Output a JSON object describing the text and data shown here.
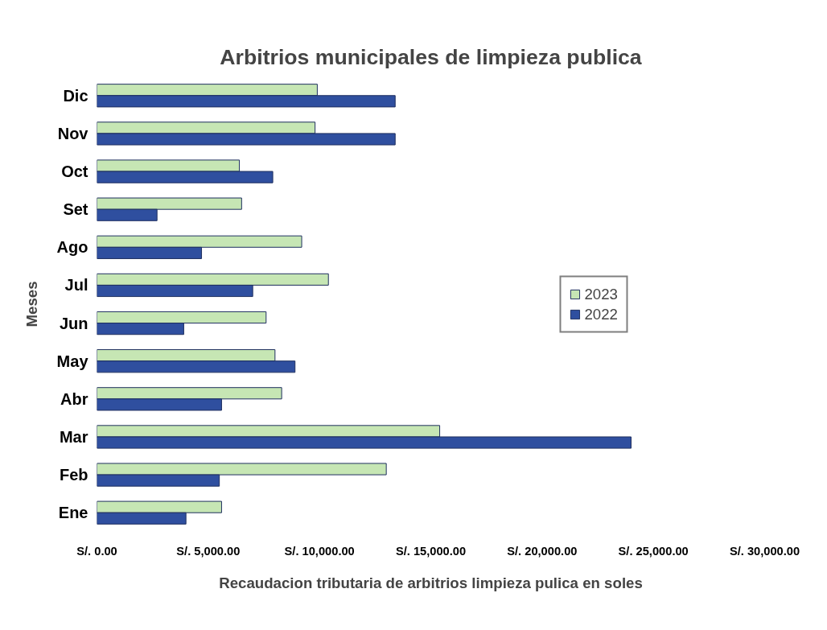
{
  "chart_data": {
    "type": "bar",
    "orientation": "horizontal",
    "title": "Arbitrios municipales de limpieza publica",
    "xlabel": "Recaudacion tributaria de arbitrios limpieza pulica en soles",
    "ylabel": "Meses",
    "categories": [
      "Dic",
      "Nov",
      "Oct",
      "Set",
      "Ago",
      "Jul",
      "Jun",
      "May",
      "Abr",
      "Mar",
      "Feb",
      "Ene"
    ],
    "series": [
      {
        "name": "2023",
        "color": "#c6e6b4",
        "values": [
          9900,
          9800,
          6400,
          6500,
          9200,
          10400,
          7600,
          8000,
          8300,
          15400,
          13000,
          5600
        ]
      },
      {
        "name": "2022",
        "color": "#2f4f9f",
        "values": [
          13400,
          13400,
          7900,
          2700,
          4700,
          7000,
          3900,
          8900,
          5600,
          24000,
          5500,
          4000
        ]
      }
    ],
    "xlim": [
      0,
      30000
    ],
    "xticks": [
      {
        "value": 0,
        "label": "S/. 0.00"
      },
      {
        "value": 5000,
        "label": "S/. 5,000.00"
      },
      {
        "value": 10000,
        "label": "S/. 10,000.00"
      },
      {
        "value": 15000,
        "label": "S/. 15,000.00"
      },
      {
        "value": 20000,
        "label": "S/. 20,000.00"
      },
      {
        "value": 25000,
        "label": "S/. 25,000.00"
      },
      {
        "value": 30000,
        "label": "S/. 30,000.00"
      }
    ],
    "grid": false,
    "legend": "right"
  }
}
